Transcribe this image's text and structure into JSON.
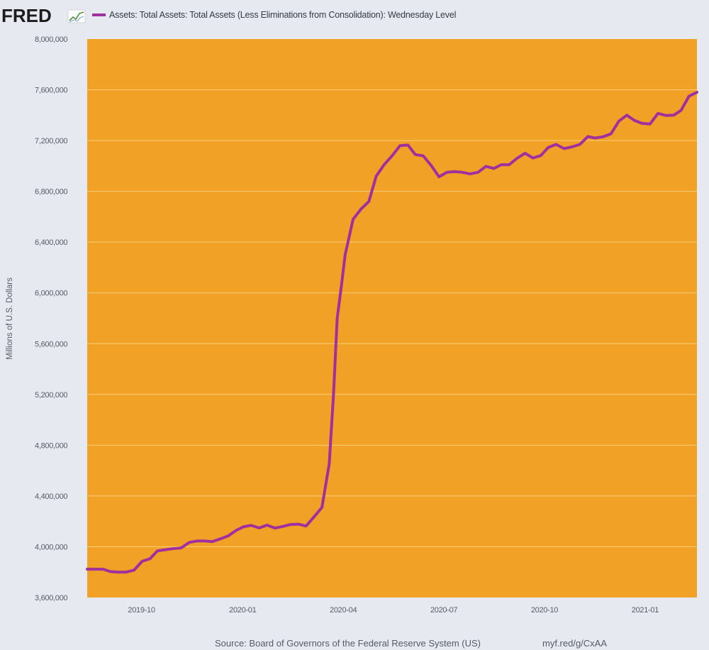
{
  "header": {
    "logo_text": "FRED",
    "logo_icon": "line-chart-icon"
  },
  "footer": {
    "source": "Source: Board of Governors of the Federal Reserve System (US)",
    "short_url": "myf.red/g/CxAA"
  },
  "colors": {
    "page_bg": "#e6e9f0",
    "plot_bg": "#f2a127",
    "series_line": "#a0309e",
    "gridline": "#f7d07a"
  },
  "chart_data": {
    "type": "line",
    "title": "",
    "xlabel": "",
    "ylabel": "Millions of U.S. Dollars",
    "ylim": [
      3600000,
      8000000
    ],
    "xlim": [
      0,
      1
    ],
    "grid": true,
    "legend": "top-left",
    "y_ticks": [
      {
        "value": 3600000,
        "label": "3,600,000"
      },
      {
        "value": 4000000,
        "label": "4,000,000"
      },
      {
        "value": 4400000,
        "label": "4,400,000"
      },
      {
        "value": 4800000,
        "label": "4,800,000"
      },
      {
        "value": 5200000,
        "label": "5,200,000"
      },
      {
        "value": 5600000,
        "label": "5,600,000"
      },
      {
        "value": 6000000,
        "label": "6,000,000"
      },
      {
        "value": 6400000,
        "label": "6,400,000"
      },
      {
        "value": 6800000,
        "label": "6,800,000"
      },
      {
        "value": 7200000,
        "label": "7,200,000"
      },
      {
        "value": 7600000,
        "label": "7,600,000"
      },
      {
        "value": 8000000,
        "label": "8,000,000"
      }
    ],
    "x_ticks": [
      {
        "x": 0.089,
        "label": "2019-10"
      },
      {
        "x": 0.255,
        "label": "2020-01"
      },
      {
        "x": 0.42,
        "label": "2020-04"
      },
      {
        "x": 0.585,
        "label": "2020-07"
      },
      {
        "x": 0.75,
        "label": "2020-10"
      },
      {
        "x": 0.915,
        "label": "2021-01"
      }
    ],
    "series": [
      {
        "name": "Assets: Total Assets: Total Assets (Less Eliminations from Consolidation): Wednesday Level",
        "x": [
          0,
          0.026,
          0.038,
          0.051,
          0.064,
          0.077,
          0.09,
          0.103,
          0.115,
          0.128,
          0.141,
          0.154,
          0.167,
          0.179,
          0.192,
          0.205,
          0.218,
          0.231,
          0.244,
          0.256,
          0.269,
          0.282,
          0.295,
          0.308,
          0.321,
          0.333,
          0.346,
          0.359,
          0.372,
          0.385,
          0.397,
          0.404,
          0.41,
          0.417,
          0.423,
          0.436,
          0.449,
          0.462,
          0.474,
          0.487,
          0.5,
          0.513,
          0.526,
          0.538,
          0.551,
          0.564,
          0.577,
          0.59,
          0.603,
          0.615,
          0.628,
          0.641,
          0.654,
          0.667,
          0.679,
          0.692,
          0.705,
          0.718,
          0.731,
          0.744,
          0.756,
          0.769,
          0.782,
          0.795,
          0.808,
          0.821,
          0.833,
          0.846,
          0.859,
          0.872,
          0.885,
          0.897,
          0.91,
          0.923,
          0.936,
          0.949,
          0.962,
          0.974,
          0.987,
          1.0
        ],
        "values": [
          3823000,
          3823000,
          3804000,
          3800000,
          3800000,
          3816000,
          3885000,
          3905000,
          3967000,
          3976000,
          3985000,
          3990000,
          4033000,
          4045000,
          4045000,
          4040000,
          4061000,
          4085000,
          4128000,
          4157000,
          4168000,
          4148000,
          4170000,
          4147000,
          4160000,
          4175000,
          4178000,
          4163000,
          4235000,
          4310000,
          4655000,
          5200000,
          5800000,
          6060000,
          6300000,
          6580000,
          6660000,
          6720000,
          6920000,
          7010000,
          7080000,
          7160000,
          7165000,
          7090000,
          7080000,
          7005000,
          6915000,
          6950000,
          6955000,
          6950000,
          6938000,
          6950000,
          6997000,
          6980000,
          7010000,
          7010000,
          7060000,
          7100000,
          7063000,
          7082000,
          7145000,
          7170000,
          7137000,
          7150000,
          7170000,
          7232000,
          7220000,
          7230000,
          7253000,
          7353000,
          7400000,
          7360000,
          7335000,
          7330000,
          7414000,
          7398000,
          7400000,
          7438000,
          7550000,
          7580000
        ]
      }
    ]
  }
}
